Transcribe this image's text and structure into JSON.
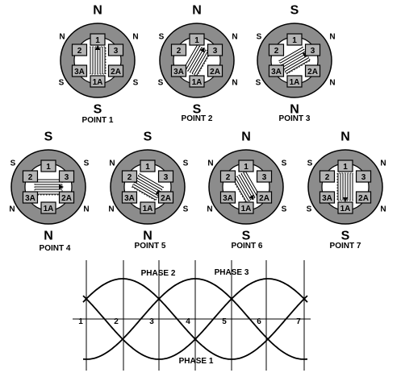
{
  "motors": [
    {
      "id": "point1",
      "label": "POINT 1",
      "angle": 0,
      "poles": {
        "top": "N",
        "bottom": "S",
        "ul": "N",
        "ur": "N",
        "ll": "S",
        "lr": "S"
      }
    },
    {
      "id": "point2",
      "label": "POINT 2",
      "angle": 30,
      "poles": {
        "top": "N",
        "bottom": "S",
        "ul": "S",
        "ur": "N",
        "ll": "S",
        "lr": "N"
      }
    },
    {
      "id": "point3",
      "label": "POINT 3",
      "angle": 60,
      "poles": {
        "top": "S",
        "bottom": "N",
        "ul": "S",
        "ur": "N",
        "ll": "S",
        "lr": "N"
      }
    },
    {
      "id": "point4",
      "label": "POINT 4",
      "angle": 90,
      "poles": {
        "top": "S",
        "bottom": "N",
        "ul": "S",
        "ur": "S",
        "ll": "N",
        "lr": "N"
      }
    },
    {
      "id": "point5",
      "label": "POINT 5",
      "angle": 120,
      "poles": {
        "top": "S",
        "bottom": "N",
        "ul": "N",
        "ur": "S",
        "ll": "N",
        "lr": "S"
      }
    },
    {
      "id": "point6",
      "label": "POINT 6",
      "angle": 150,
      "poles": {
        "top": "N",
        "bottom": "S",
        "ul": "N",
        "ur": "S",
        "ll": "N",
        "lr": "S"
      }
    },
    {
      "id": "point7",
      "label": "POINT 7",
      "angle": 180,
      "poles": {
        "top": "N",
        "bottom": "S",
        "ul": "S",
        "ur": "N",
        "ll": "S",
        "lr": "N"
      }
    }
  ],
  "pole_labels": [
    "1",
    "2",
    "3",
    "3A",
    "2A",
    "1A"
  ],
  "waveform": {
    "phase1_label": "PHASE 1",
    "phase2_label": "PHASE 2",
    "phase3_label": "PHASE 3",
    "point_numbers": [
      "1",
      "2",
      "3",
      "4",
      "5",
      "6",
      "7"
    ]
  }
}
